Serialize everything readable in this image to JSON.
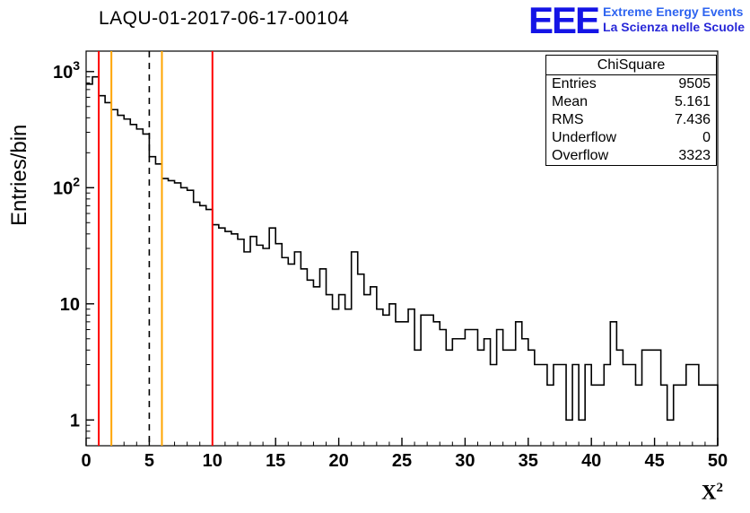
{
  "header": {
    "title": "LAQU-01-2017-06-17-00104"
  },
  "logo": {
    "text": "EEE",
    "line1": "Extreme Energy Events",
    "line2": "La Scienza nelle Scuole",
    "color_text": "#1414e6",
    "color_line1": "#2e64f0",
    "color_line2": "#2828d8"
  },
  "stats": {
    "title": "ChiSquare",
    "rows": [
      {
        "label": "Entries",
        "value": "9505"
      },
      {
        "label": "Mean",
        "value": "5.161"
      },
      {
        "label": "RMS",
        "value": "7.436"
      },
      {
        "label": "Underflow",
        "value": "0"
      },
      {
        "label": "Overflow",
        "value": "3323"
      }
    ]
  },
  "axes": {
    "y_label": "Entries/bin",
    "x_label_base": "X",
    "x_label_exp": "2"
  },
  "chart_data": {
    "type": "bar",
    "style": "step-histogram",
    "title": "LAQU-01-2017-06-17-00104",
    "xlabel": "X^2",
    "ylabel": "Entries/bin",
    "yscale": "log",
    "grid": false,
    "xlim": [
      0,
      50
    ],
    "ylim": [
      0.6,
      1500
    ],
    "bin_width": 0.5,
    "x_ticks": [
      0,
      5,
      10,
      15,
      20,
      25,
      30,
      35,
      40,
      45,
      50
    ],
    "y_ticks": [
      {
        "value": 1,
        "base": "1",
        "exp": ""
      },
      {
        "value": 10,
        "base": "10",
        "exp": ""
      },
      {
        "value": 100,
        "base": "10",
        "exp": "2"
      },
      {
        "value": 1000,
        "base": "10",
        "exp": "3"
      }
    ],
    "values": [
      780,
      900,
      620,
      540,
      470,
      420,
      390,
      350,
      320,
      290,
      185,
      160,
      120,
      115,
      110,
      100,
      95,
      75,
      70,
      65,
      48,
      45,
      42,
      40,
      36,
      28,
      38,
      32,
      30,
      45,
      33,
      25,
      22,
      28,
      20,
      16,
      14,
      20,
      12,
      9,
      12,
      9,
      28,
      18,
      12,
      14,
      9,
      8,
      10,
      7,
      7,
      9,
      4,
      8,
      8,
      7,
      6,
      4,
      5,
      5,
      6,
      6,
      4,
      5,
      3,
      6,
      4,
      4,
      7,
      5,
      4,
      3,
      3,
      2,
      3,
      3,
      1,
      3,
      1,
      3,
      2,
      2,
      3,
      7,
      4,
      3,
      3,
      2,
      4,
      4,
      4,
      2,
      1,
      2,
      2,
      3,
      3,
      2,
      2,
      2
    ],
    "vlines": [
      {
        "x": 1,
        "color": "#ff0000",
        "style": "solid"
      },
      {
        "x": 2,
        "color": "#ffa500",
        "style": "solid"
      },
      {
        "x": 5,
        "color": "#000000",
        "style": "dashed"
      },
      {
        "x": 6,
        "color": "#ffa500",
        "style": "solid"
      },
      {
        "x": 10,
        "color": "#ff0000",
        "style": "solid"
      }
    ],
    "stats_summary": {
      "entries": 9505,
      "mean": 5.161,
      "rms": 7.436,
      "underflow": 0,
      "overflow": 3323
    }
  }
}
